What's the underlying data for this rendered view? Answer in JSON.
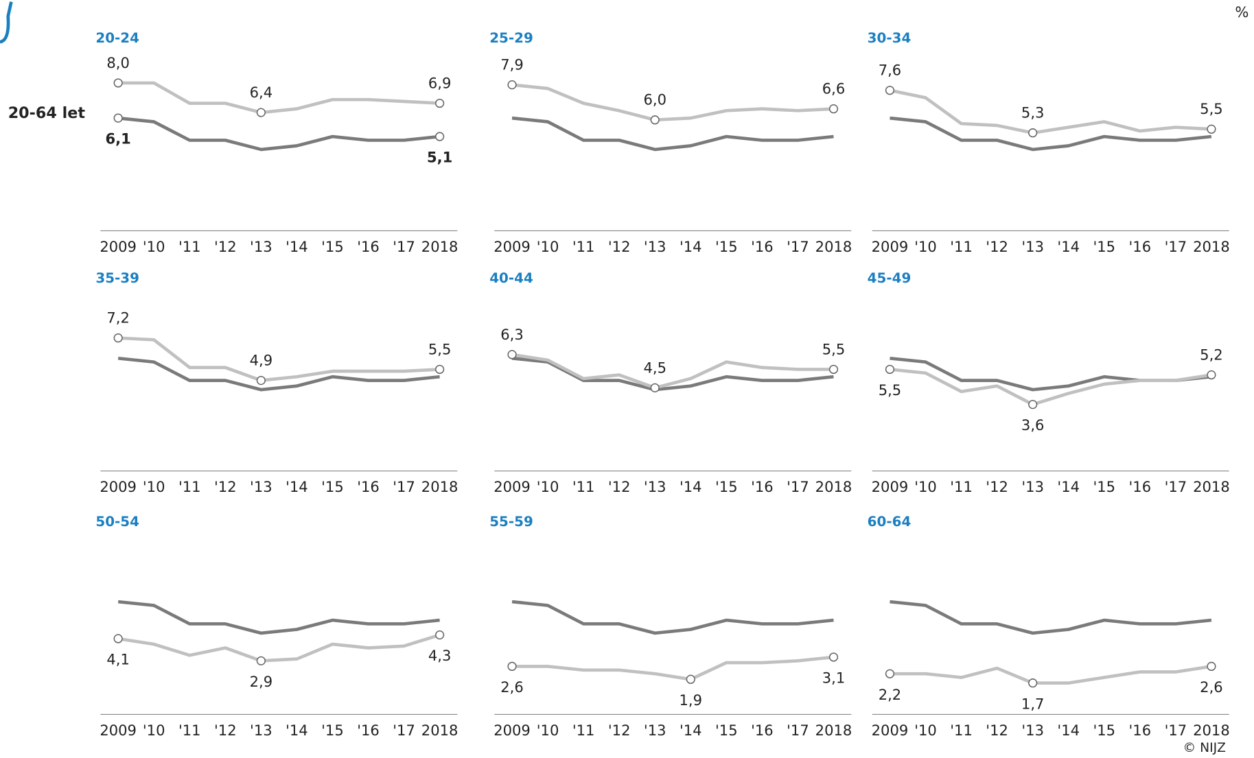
{
  "unit": "%",
  "reference_label": "20-64 let",
  "credit": "© NIJZ",
  "chart_data": [
    {
      "type": "line",
      "title": "20-24",
      "categories": [
        "2009",
        "'10",
        "'11",
        "'12",
        "'13",
        "'14",
        "'15",
        "'16",
        "'17",
        "2018"
      ],
      "ylim": [
        0,
        8
      ],
      "series": [
        {
          "color": "#c0c0c0",
          "values": [
            8.0,
            8.0,
            6.9,
            6.9,
            6.4,
            6.6,
            7.1,
            7.1,
            7.0,
            6.9
          ],
          "value_labels": [
            "8,0",
            null,
            null,
            null,
            "6,4",
            null,
            null,
            null,
            null,
            "6,9"
          ]
        },
        {
          "color": "#7a7a7a",
          "values": [
            6.1,
            5.9,
            4.9,
            4.9,
            4.4,
            4.6,
            5.1,
            4.9,
            4.9,
            5.1
          ],
          "value_labels": [
            "6,1",
            null,
            null,
            null,
            null,
            null,
            null,
            null,
            null,
            "5,1"
          ]
        }
      ]
    },
    {
      "type": "line",
      "title": "25-29",
      "categories": [
        "2009",
        "'10",
        "'11",
        "'12",
        "'13",
        "'14",
        "'15",
        "'16",
        "'17",
        "2018"
      ],
      "ylim": [
        0,
        8
      ],
      "series": [
        {
          "color": "#c0c0c0",
          "values": [
            7.9,
            7.7,
            6.9,
            6.5,
            6.0,
            6.1,
            6.5,
            6.6,
            6.5,
            6.6
          ],
          "value_labels": [
            "7,9",
            null,
            null,
            null,
            "6,0",
            null,
            null,
            null,
            null,
            "6,6"
          ]
        },
        {
          "color": "#7a7a7a",
          "values": [
            6.1,
            5.9,
            4.9,
            4.9,
            4.4,
            4.6,
            5.1,
            4.9,
            4.9,
            5.1
          ]
        }
      ]
    },
    {
      "type": "line",
      "title": "30-34",
      "categories": [
        "2009",
        "'10",
        "'11",
        "'12",
        "'13",
        "'14",
        "'15",
        "'16",
        "'17",
        "2018"
      ],
      "ylim": [
        0,
        8
      ],
      "series": [
        {
          "color": "#c0c0c0",
          "values": [
            7.6,
            7.2,
            5.8,
            5.7,
            5.3,
            5.6,
            5.9,
            5.4,
            5.6,
            5.5
          ],
          "value_labels": [
            "7,6",
            null,
            null,
            null,
            "5,3",
            null,
            null,
            null,
            null,
            "5,5"
          ]
        },
        {
          "color": "#7a7a7a",
          "values": [
            6.1,
            5.9,
            4.9,
            4.9,
            4.4,
            4.6,
            5.1,
            4.9,
            4.9,
            5.1
          ]
        }
      ]
    },
    {
      "type": "line",
      "title": "35-39",
      "categories": [
        "2009",
        "'10",
        "'11",
        "'12",
        "'13",
        "'14",
        "'15",
        "'16",
        "'17",
        "2018"
      ],
      "ylim": [
        0,
        8
      ],
      "series": [
        {
          "color": "#c0c0c0",
          "values": [
            7.2,
            7.1,
            5.6,
            5.6,
            4.9,
            5.1,
            5.4,
            5.4,
            5.4,
            5.5
          ],
          "value_labels": [
            "7,2",
            null,
            null,
            null,
            "4,9",
            null,
            null,
            null,
            null,
            "5,5"
          ]
        },
        {
          "color": "#7a7a7a",
          "values": [
            6.1,
            5.9,
            4.9,
            4.9,
            4.4,
            4.6,
            5.1,
            4.9,
            4.9,
            5.1
          ]
        }
      ]
    },
    {
      "type": "line",
      "title": "40-44",
      "categories": [
        "2009",
        "'10",
        "'11",
        "'12",
        "'13",
        "'14",
        "'15",
        "'16",
        "'17",
        "2018"
      ],
      "ylim": [
        0,
        8
      ],
      "series": [
        {
          "color": "#c0c0c0",
          "values": [
            6.3,
            6.0,
            5.0,
            5.2,
            4.5,
            5.0,
            5.9,
            5.6,
            5.5,
            5.5
          ],
          "value_labels": [
            "6,3",
            null,
            null,
            null,
            "4,5",
            null,
            null,
            null,
            null,
            "5,5"
          ]
        },
        {
          "color": "#7a7a7a",
          "values": [
            6.1,
            5.9,
            4.9,
            4.9,
            4.4,
            4.6,
            5.1,
            4.9,
            4.9,
            5.1
          ]
        }
      ]
    },
    {
      "type": "line",
      "title": "45-49",
      "categories": [
        "2009",
        "'10",
        "'11",
        "'12",
        "'13",
        "'14",
        "'15",
        "'16",
        "'17",
        "2018"
      ],
      "ylim": [
        0,
        8
      ],
      "series": [
        {
          "color": "#c0c0c0",
          "values": [
            5.5,
            5.3,
            4.3,
            4.6,
            3.6,
            4.2,
            4.7,
            4.9,
            4.9,
            5.2
          ],
          "value_labels": [
            "5,5",
            null,
            null,
            null,
            "3,6",
            null,
            null,
            null,
            null,
            "5,2"
          ]
        },
        {
          "color": "#7a7a7a",
          "values": [
            6.1,
            5.9,
            4.9,
            4.9,
            4.4,
            4.6,
            5.1,
            4.9,
            4.9,
            5.1
          ]
        }
      ]
    },
    {
      "type": "line",
      "title": "50-54",
      "categories": [
        "2009",
        "'10",
        "'11",
        "'12",
        "'13",
        "'14",
        "'15",
        "'16",
        "'17",
        "2018"
      ],
      "ylim": [
        0,
        8
      ],
      "series": [
        {
          "color": "#c0c0c0",
          "values": [
            4.1,
            3.8,
            3.2,
            3.6,
            2.9,
            3.0,
            3.8,
            3.6,
            3.7,
            4.3
          ],
          "value_labels": [
            "4,1",
            null,
            null,
            null,
            "2,9",
            null,
            null,
            null,
            null,
            "4,3"
          ]
        },
        {
          "color": "#7a7a7a",
          "values": [
            6.1,
            5.9,
            4.9,
            4.9,
            4.4,
            4.6,
            5.1,
            4.9,
            4.9,
            5.1
          ]
        }
      ]
    },
    {
      "type": "line",
      "title": "55-59",
      "categories": [
        "2009",
        "'10",
        "'11",
        "'12",
        "'13",
        "'14",
        "'15",
        "'16",
        "'17",
        "2018"
      ],
      "ylim": [
        0,
        8
      ],
      "series": [
        {
          "color": "#c0c0c0",
          "values": [
            2.6,
            2.6,
            2.4,
            2.4,
            2.2,
            1.9,
            2.8,
            2.8,
            2.9,
            3.1
          ],
          "value_labels": [
            "2,6",
            null,
            null,
            null,
            null,
            "1,9",
            null,
            null,
            null,
            "3,1"
          ]
        },
        {
          "color": "#7a7a7a",
          "values": [
            6.1,
            5.9,
            4.9,
            4.9,
            4.4,
            4.6,
            5.1,
            4.9,
            4.9,
            5.1
          ]
        }
      ]
    },
    {
      "type": "line",
      "title": "60-64",
      "categories": [
        "2009",
        "'10",
        "'11",
        "'12",
        "'13",
        "'14",
        "'15",
        "'16",
        "'17",
        "2018"
      ],
      "ylim": [
        0,
        8
      ],
      "series": [
        {
          "color": "#c0c0c0",
          "values": [
            2.2,
            2.2,
            2.0,
            2.5,
            1.7,
            1.7,
            2.0,
            2.3,
            2.3,
            2.6
          ],
          "value_labels": [
            "2,2",
            null,
            null,
            null,
            "1,7",
            null,
            null,
            null,
            null,
            "2,6"
          ]
        },
        {
          "color": "#7a7a7a",
          "values": [
            6.1,
            5.9,
            4.9,
            4.9,
            4.4,
            4.6,
            5.1,
            4.9,
            4.9,
            5.1
          ]
        }
      ]
    }
  ]
}
